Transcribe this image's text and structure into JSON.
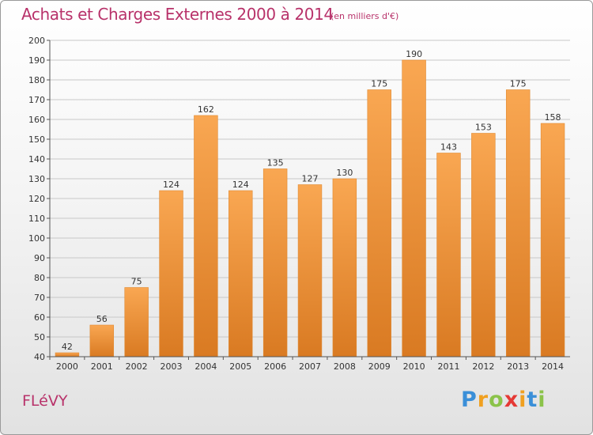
{
  "header": {
    "title": "Achats et Charges Externes 2000 à 2014",
    "subtitle": "(en milliers d'€)"
  },
  "footer": {
    "place": "FLéVY",
    "logo": {
      "letters": [
        "P",
        "r",
        "o",
        "x",
        "i",
        "t",
        "i"
      ],
      "colors": [
        "#3a8fd8",
        "#f0a020",
        "#8bc34a",
        "#e53935",
        "#f0a020",
        "#3a8fd8",
        "#8bc34a"
      ]
    }
  },
  "colors": {
    "bar_light": "#f9a752",
    "bar_dark": "#d97a22",
    "grid": "#c8c8c8",
    "axis": "#555555",
    "title": "#b8326a"
  },
  "chart_data": {
    "type": "bar",
    "title": "Achats et Charges Externes 2000 à 2014",
    "subtitle": "(en milliers d'€)",
    "xlabel": "",
    "ylabel": "",
    "categories": [
      "2000",
      "2001",
      "2002",
      "2003",
      "2004",
      "2005",
      "2006",
      "2007",
      "2008",
      "2009",
      "2010",
      "2011",
      "2012",
      "2013",
      "2014"
    ],
    "values": [
      42,
      56,
      75,
      124,
      162,
      124,
      135,
      127,
      130,
      175,
      190,
      143,
      153,
      175,
      158
    ],
    "ylim": [
      40,
      200
    ],
    "yticks": [
      40,
      50,
      60,
      70,
      80,
      90,
      100,
      110,
      120,
      130,
      140,
      150,
      160,
      170,
      180,
      190,
      200
    ],
    "grid": true,
    "data_labels": true
  }
}
